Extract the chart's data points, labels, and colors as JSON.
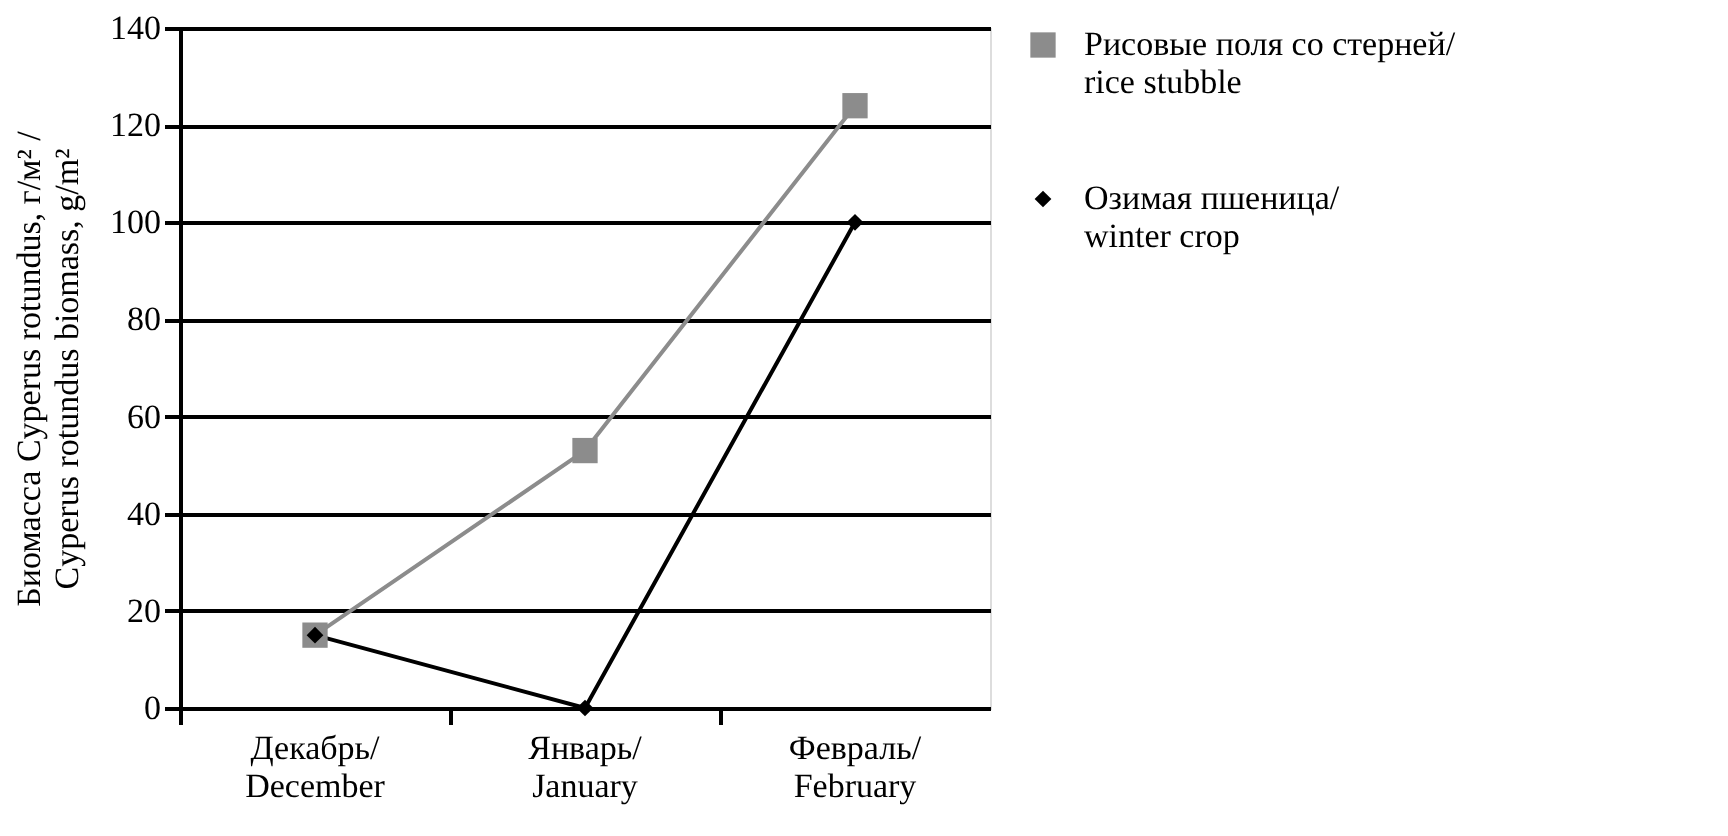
{
  "chart_data": {
    "type": "line",
    "ylabel": "Биомасса Cyperus rotundus, г/м² /\nCyperus rotundus biomass, g/m²",
    "categories": [
      "Декабрь/\nDecember",
      "Январь/\nJanuary",
      "Февраль/\nFebruary"
    ],
    "series": [
      {
        "name": "Рисовые поля со стерней/\nrice stubble",
        "color": "#8c8c8c",
        "marker": "square",
        "values": [
          15,
          53,
          124
        ]
      },
      {
        "name": "Озимая пшеница/\nwinter crop",
        "color": "#000000",
        "marker": "diamond",
        "values": [
          15,
          0,
          100
        ]
      }
    ],
    "ylim": [
      0,
      140
    ],
    "yticks": [
      0,
      20,
      40,
      60,
      80,
      100,
      120,
      140
    ],
    "grid": "y",
    "legend": "right"
  }
}
